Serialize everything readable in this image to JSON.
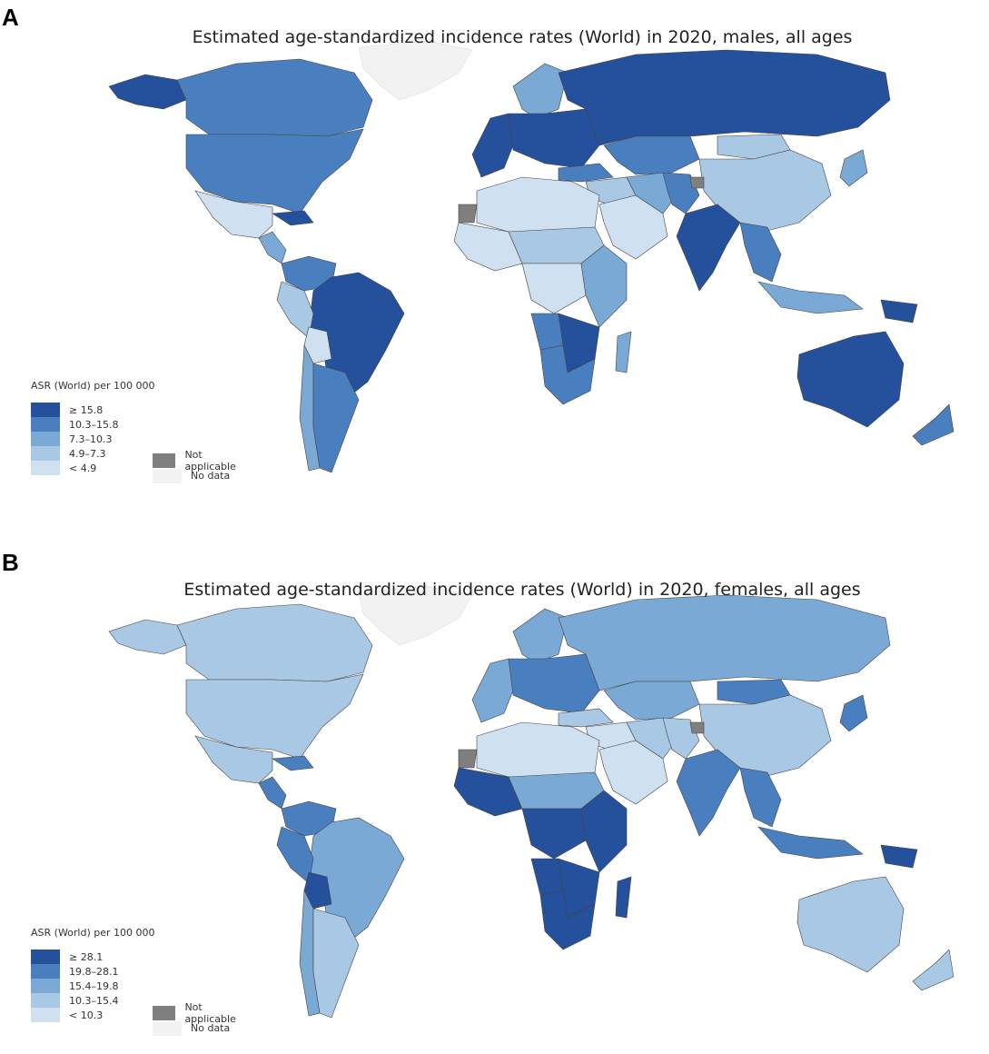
{
  "colors": {
    "c1": "#25509b",
    "c2": "#4a7fbf",
    "c3": "#7aa9d6",
    "c4": "#a9c8e4",
    "c5": "#cfe0f1",
    "not_applicable": "#7f7f7f",
    "no_data": "#f2f2f2",
    "border": "#444444"
  },
  "panels": [
    {
      "letter": "A",
      "title": "Estimated age-standardized incidence rates (World) in 2020, males, all ages",
      "legend": {
        "title": "ASR (World) per 100 000",
        "classes": [
          "≥ 15.8",
          "10.3–15.8",
          "7.3–10.3",
          "4.9–7.3",
          "< 4.9"
        ],
        "not_applicable": "Not applicable",
        "no_data": "No data"
      },
      "regions": {
        "alaska": "c1",
        "canada": "c2",
        "greenland": "no_data",
        "usa": "c2",
        "mexico": "c5",
        "central_america": "c3",
        "caribbean": "c1",
        "colombia_ven": "c2",
        "brazil": "c1",
        "peru": "c4",
        "bolivia": "c5",
        "argentina": "c2",
        "chile": "c3",
        "western_europe": "c1",
        "scandinavia": "c3",
        "eastern_europe": "c1",
        "russia": "c1",
        "kazakhstan": "c2",
        "turkey": "c2",
        "middle_east": "c4",
        "arabia": "c5",
        "iran": "c3",
        "pakistan_afg": "c2",
        "india": "c1",
        "china": "c4",
        "mongolia": "c4",
        "se_asia": "c2",
        "japan": "c3",
        "indonesia": "c3",
        "png": "c1",
        "north_africa": "c5",
        "west_africa": "c5",
        "sahel": "c4",
        "central_africa": "c5",
        "east_africa": "c3",
        "angola": "c2",
        "southern_africa": "c1",
        "south_africa": "c2",
        "madagascar": "c3",
        "australia": "c1",
        "new_zealand": "c2",
        "western_sahara": "not_applicable",
        "kashmir": "not_applicable"
      }
    },
    {
      "letter": "B",
      "title": "Estimated age-standardized incidence rates (World) in 2020, females, all ages",
      "legend": {
        "title": "ASR (World) per 100 000",
        "classes": [
          "≥ 28.1",
          "19.8–28.1",
          "15.4–19.8",
          "10.3–15.4",
          "< 10.3"
        ],
        "not_applicable": "Not applicable",
        "no_data": "No data"
      },
      "regions": {
        "alaska": "c4",
        "canada": "c4",
        "greenland": "no_data",
        "usa": "c4",
        "mexico": "c4",
        "central_america": "c2",
        "caribbean": "c2",
        "colombia_ven": "c2",
        "brazil": "c3",
        "peru": "c2",
        "bolivia": "c1",
        "argentina": "c4",
        "chile": "c3",
        "western_europe": "c3",
        "scandinavia": "c3",
        "eastern_europe": "c2",
        "russia": "c3",
        "kazakhstan": "c3",
        "turkey": "c4",
        "middle_east": "c5",
        "arabia": "c5",
        "iran": "c4",
        "pakistan_afg": "c4",
        "india": "c2",
        "china": "c4",
        "mongolia": "c2",
        "se_asia": "c2",
        "japan": "c2",
        "indonesia": "c2",
        "png": "c1",
        "north_africa": "c5",
        "west_africa": "c1",
        "sahel": "c3",
        "central_africa": "c1",
        "east_africa": "c1",
        "angola": "c1",
        "southern_africa": "c1",
        "south_africa": "c1",
        "madagascar": "c1",
        "australia": "c4",
        "new_zealand": "c4",
        "western_sahara": "not_applicable",
        "kashmir": "not_applicable"
      }
    }
  ]
}
